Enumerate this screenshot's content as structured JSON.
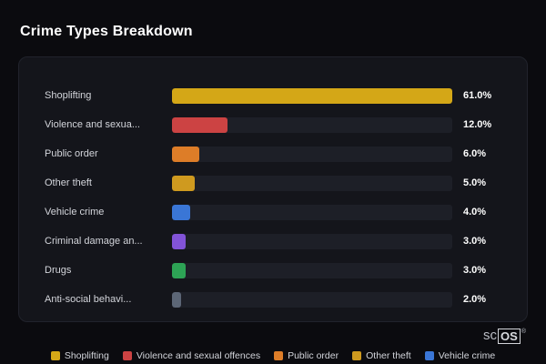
{
  "page": {
    "title": "Crime Types Breakdown"
  },
  "watermark": {
    "prefix": "sc",
    "boxed": "OS",
    "reg": "®"
  },
  "chart_data": {
    "type": "bar",
    "orientation": "horizontal",
    "title": "Crime Types Breakdown",
    "max_value": 61.0,
    "grid": false,
    "legend_position": "bottom",
    "series": [
      {
        "display_label": "Shoplifting",
        "value": 61.0,
        "value_label": "61.0%",
        "color": "#d4a717"
      },
      {
        "display_label": "Violence and sexua...",
        "value": 12.0,
        "value_label": "12.0%",
        "color": "#cc4343"
      },
      {
        "display_label": "Public order",
        "value": 6.0,
        "value_label": "6.0%",
        "color": "#dd7d28"
      },
      {
        "display_label": "Other theft",
        "value": 5.0,
        "value_label": "5.0%",
        "color": "#cf9a1f"
      },
      {
        "display_label": "Vehicle crime",
        "value": 4.0,
        "value_label": "4.0%",
        "color": "#3a76d6"
      },
      {
        "display_label": "Criminal damage an...",
        "value": 3.0,
        "value_label": "3.0%",
        "color": "#8253d8"
      },
      {
        "display_label": "Drugs",
        "value": 3.0,
        "value_label": "3.0%",
        "color": "#2da355"
      },
      {
        "display_label": "Anti-social behavi...",
        "value": 2.0,
        "value_label": "2.0%",
        "color": "#5c6676"
      }
    ],
    "legend": [
      {
        "label": "Shoplifting",
        "color": "#d4a717"
      },
      {
        "label": "Violence and sexual offences",
        "color": "#cc4343"
      },
      {
        "label": "Public order",
        "color": "#dd7d28"
      },
      {
        "label": "Other theft",
        "color": "#cf9a1f"
      },
      {
        "label": "Vehicle crime",
        "color": "#3a76d6"
      }
    ]
  }
}
